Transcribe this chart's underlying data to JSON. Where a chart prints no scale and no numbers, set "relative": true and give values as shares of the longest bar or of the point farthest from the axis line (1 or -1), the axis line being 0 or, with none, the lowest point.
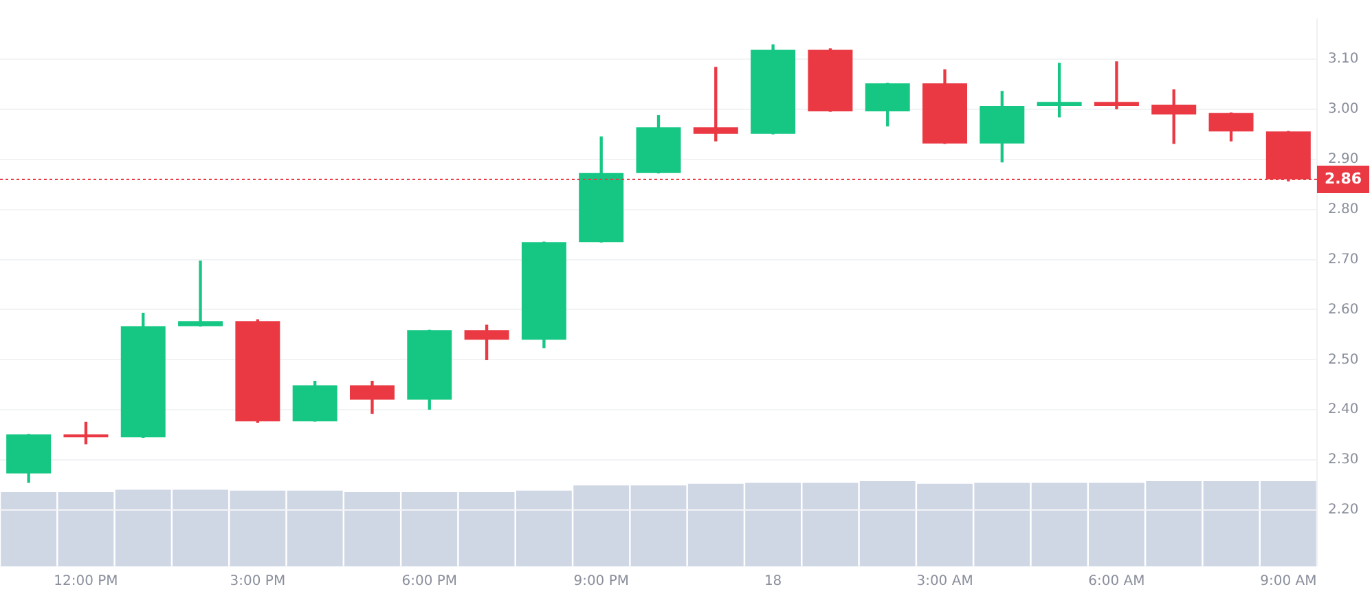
{
  "chart_data": [
    {
      "type": "candlestick",
      "categories": [
        null,
        "12:00 PM",
        null,
        null,
        "3:00 PM",
        null,
        null,
        "6:00 PM",
        null,
        null,
        "9:00 PM",
        null,
        null,
        "18",
        null,
        null,
        "3:00 AM",
        null,
        null,
        "6:00 AM",
        null,
        null,
        "9:00 AM"
      ],
      "ohlc": [
        [
          2.273,
          2.351,
          2.255,
          2.351
        ],
        [
          2.351,
          2.375,
          2.332,
          2.345
        ],
        [
          2.345,
          2.593,
          2.345,
          2.567
        ],
        [
          2.567,
          2.697,
          2.567,
          2.577
        ],
        [
          2.577,
          2.58,
          2.375,
          2.377
        ],
        [
          2.377,
          2.457,
          2.377,
          2.449
        ],
        [
          2.449,
          2.457,
          2.393,
          2.42
        ],
        [
          2.42,
          2.559,
          2.401,
          2.559
        ],
        [
          2.559,
          2.569,
          2.5,
          2.54
        ],
        [
          2.54,
          2.735,
          2.524,
          2.735
        ],
        [
          2.735,
          2.945,
          2.735,
          2.873
        ],
        [
          2.873,
          2.988,
          2.873,
          2.964
        ],
        [
          2.964,
          3.084,
          2.937,
          2.951
        ],
        [
          2.951,
          3.129,
          2.951,
          3.119
        ],
        [
          3.119,
          3.121,
          2.996,
          2.996
        ],
        [
          2.996,
          3.052,
          2.967,
          3.052
        ],
        [
          3.052,
          3.079,
          2.932,
          2.932
        ],
        [
          2.932,
          3.036,
          2.895,
          3.007
        ],
        [
          3.007,
          3.092,
          2.985,
          3.015
        ],
        [
          3.015,
          3.095,
          3.001,
          3.007
        ],
        [
          3.009,
          3.039,
          2.932,
          2.99
        ],
        [
          2.993,
          2.993,
          2.937,
          2.956
        ],
        [
          2.956,
          2.956,
          2.857,
          2.86
        ]
      ],
      "colors": [
        "#16c784",
        "#ea3943",
        "#16c784",
        "#16c784",
        "#ea3943",
        "#16c784",
        "#ea3943",
        "#16c784",
        "#ea3943",
        "#16c784",
        "#16c784",
        "#16c784",
        "#ea3943",
        "#16c784",
        "#ea3943",
        "#16c784",
        "#ea3943",
        "#16c784",
        "#16c784",
        "#ea3943",
        "#ea3943",
        "#ea3943",
        "#ea3943"
      ],
      "ylim": [
        2.09,
        3.18
      ],
      "yticks": [
        {
          "value": 2.2,
          "label": "2.20"
        },
        {
          "value": 2.3,
          "label": "2.30"
        },
        {
          "value": 2.4,
          "label": "2.40"
        },
        {
          "value": 2.5,
          "label": "2.50"
        },
        {
          "value": 2.6,
          "label": "2.60"
        },
        {
          "value": 2.7,
          "label": "2.70"
        },
        {
          "value": 2.8,
          "label": "2.80"
        },
        {
          "value": 2.9,
          "label": "2.90"
        },
        {
          "value": 3.0,
          "label": "3.00"
        },
        {
          "value": 3.1,
          "label": "3.10"
        }
      ],
      "grid": "y",
      "legend": false,
      "ref_lines": [
        {
          "axis": "y",
          "value": 2.86,
          "label": "2.86",
          "color": "#ea3943",
          "line_style": "dotted"
        }
      ]
    },
    {
      "type": "bar",
      "relative": true,
      "color": "#cfd6e4",
      "tick_labels": false,
      "legend": false,
      "grid": false,
      "categories": [
        null,
        null,
        null,
        null,
        null,
        null,
        null,
        null,
        null,
        null,
        null,
        null,
        null,
        null,
        null,
        null,
        null,
        null,
        null,
        null,
        null,
        null,
        null
      ],
      "values": [
        0.87,
        0.87,
        0.9,
        0.9,
        0.89,
        0.89,
        0.87,
        0.87,
        0.87,
        0.89,
        0.95,
        0.95,
        0.97,
        0.98,
        0.98,
        1,
        0.97,
        0.98,
        0.98,
        0.98,
        1,
        1,
        1
      ]
    }
  ]
}
